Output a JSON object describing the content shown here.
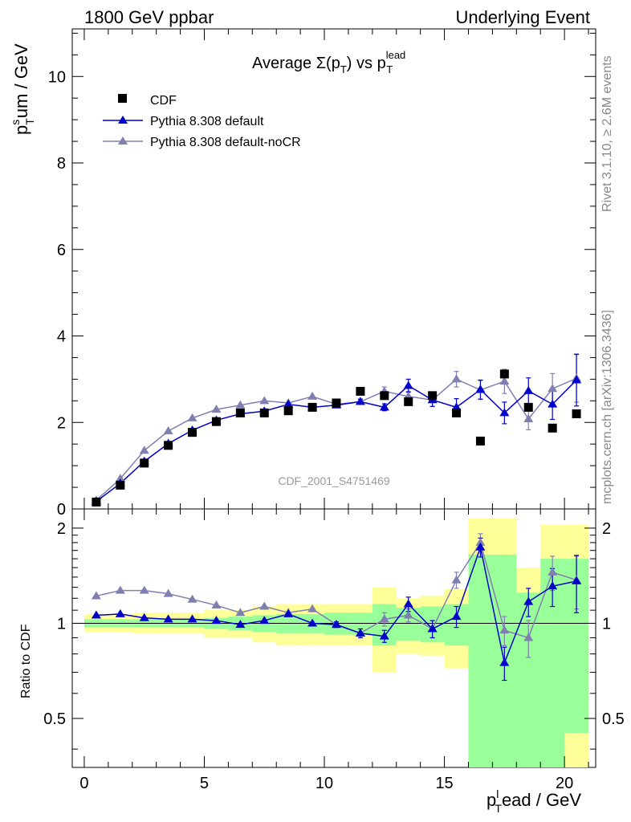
{
  "header": {
    "left_title": "1800 GeV ppbar",
    "right_title": "Underlying Event"
  },
  "side_labels": {
    "rivet": "Rivet 3.1.10, ≥ 2.6M events",
    "mcplots": "mcplots.cern.ch [arXiv:1306.3436]"
  },
  "chart_data": [
    {
      "type": "scatter",
      "title": "Average Σ(p_T) vs p_T^lead",
      "title_parts": {
        "main": "Average Σ(p",
        "sub1": "T",
        "mid": ") vs p",
        "sup": "lead",
        "sub2": "T"
      },
      "watermark": "CDF_2001_S4751469",
      "ylabel": "p_T^sum / GeV",
      "ylabel_parts": {
        "p": "p",
        "sup": "s",
        "sub": "T",
        "rest": "um / GeV"
      },
      "xlim": [
        -0.5,
        21.3
      ],
      "ylim": [
        0,
        11.1
      ],
      "yticks": [
        0,
        2,
        4,
        6,
        8,
        10
      ],
      "ytick_labels": [
        "0",
        "2",
        "4",
        "6",
        "8",
        "10"
      ],
      "legend_position": "top-left",
      "series": [
        {
          "name": "CDF",
          "color": "#000000",
          "marker": "square",
          "x": [
            0.5,
            1.5,
            2.5,
            3.5,
            4.5,
            5.5,
            6.5,
            7.5,
            8.5,
            9.5,
            10.5,
            11.5,
            12.5,
            13.5,
            14.5,
            15.5,
            16.5,
            17.5,
            18.5,
            19.5,
            20.5
          ],
          "y": [
            0.16,
            0.55,
            1.06,
            1.47,
            1.77,
            2.02,
            2.22,
            2.22,
            2.27,
            2.35,
            2.45,
            2.72,
            2.62,
            2.48,
            2.62,
            2.22,
            1.57,
            3.12,
            2.35,
            1.87,
            2.2
          ]
        },
        {
          "name": "Pythia 8.308 default",
          "color": "#0000cc",
          "marker": "triangle",
          "x": [
            0.5,
            1.5,
            2.5,
            3.5,
            4.5,
            5.5,
            6.5,
            7.5,
            8.5,
            9.5,
            10.5,
            11.5,
            12.5,
            13.5,
            14.5,
            15.5,
            16.5,
            17.5,
            18.5,
            19.5,
            20.5
          ],
          "y": [
            0.17,
            0.59,
            1.1,
            1.51,
            1.82,
            2.05,
            2.2,
            2.26,
            2.42,
            2.35,
            2.4,
            2.48,
            2.35,
            2.85,
            2.52,
            2.35,
            2.76,
            2.22,
            2.73,
            2.42,
            2.98
          ],
          "yerr": [
            0,
            0,
            0,
            0,
            0,
            0,
            0,
            0,
            0,
            0,
            0.05,
            0.06,
            0.08,
            0.15,
            0.15,
            0.2,
            0.22,
            0.25,
            0.3,
            0.35,
            0.6
          ]
        },
        {
          "name": "Pythia 8.308 default-noCR",
          "color": "#8080b0",
          "marker": "triangle",
          "x": [
            0.5,
            1.5,
            2.5,
            3.5,
            4.5,
            5.5,
            6.5,
            7.5,
            8.5,
            9.5,
            10.5,
            11.5,
            12.5,
            13.5,
            14.5,
            15.5,
            16.5,
            17.5,
            18.5,
            19.5,
            20.5
          ],
          "y": [
            0.2,
            0.7,
            1.35,
            1.8,
            2.1,
            2.3,
            2.4,
            2.5,
            2.45,
            2.6,
            2.42,
            2.48,
            2.72,
            2.6,
            2.52,
            3.0,
            2.75,
            2.95,
            2.08,
            2.78,
            3.02
          ],
          "yerr": [
            0,
            0,
            0,
            0,
            0,
            0,
            0,
            0,
            0,
            0,
            0.05,
            0.06,
            0.1,
            0.12,
            0.15,
            0.18,
            0.22,
            0.28,
            0.25,
            0.35,
            0.55
          ]
        }
      ]
    },
    {
      "type": "line",
      "ylabel": "Ratio to CDF",
      "xlabel": "p_T^lead / GeV",
      "xlabel_parts": {
        "p": "p",
        "sup": "l",
        "sub": "T",
        "rest": "ead / GeV"
      },
      "xlim": [
        -0.5,
        21.3
      ],
      "ylim": [
        0.35,
        2.3
      ],
      "xticks": [
        0,
        5,
        10,
        15,
        20
      ],
      "xtick_labels": [
        "0",
        "5",
        "10",
        "15",
        "20"
      ],
      "yticks": [
        0.5,
        1,
        2
      ],
      "ytick_labels": [
        "0.5",
        "1",
        "2"
      ],
      "bands": {
        "x_edges": [
          0,
          1,
          2,
          3,
          4,
          5,
          6,
          7,
          8,
          9,
          10,
          11,
          12,
          13,
          14,
          15,
          16,
          17,
          18,
          19,
          20,
          21
        ],
        "yellow_lo": [
          0.94,
          0.94,
          0.93,
          0.93,
          0.93,
          0.9,
          0.9,
          0.87,
          0.85,
          0.85,
          0.85,
          0.85,
          0.7,
          0.8,
          0.79,
          0.72,
          0.5,
          0.35,
          0.35,
          0.35,
          0.35
        ],
        "yellow_hi": [
          1.07,
          1.07,
          1.08,
          1.08,
          1.08,
          1.1,
          1.1,
          1.13,
          1.15,
          1.15,
          1.15,
          1.15,
          1.3,
          1.2,
          1.22,
          1.28,
          2.15,
          2.15,
          1.5,
          2.05,
          2.05
        ],
        "green_lo": [
          0.97,
          0.97,
          0.97,
          0.97,
          0.97,
          0.96,
          0.95,
          0.94,
          0.93,
          0.93,
          0.92,
          0.92,
          0.85,
          0.88,
          0.87,
          0.85,
          0.35,
          0.35,
          0.35,
          0.35,
          0.45
        ],
        "green_hi": [
          1.03,
          1.03,
          1.03,
          1.03,
          1.03,
          1.04,
          1.05,
          1.06,
          1.07,
          1.07,
          1.08,
          1.08,
          1.15,
          1.12,
          1.13,
          1.15,
          1.65,
          1.65,
          1.25,
          1.6,
          1.6
        ]
      },
      "series": [
        {
          "name": "Pythia 8.308 default",
          "color": "#0000cc",
          "x": [
            0.5,
            1.5,
            2.5,
            3.5,
            4.5,
            5.5,
            6.5,
            7.5,
            8.5,
            9.5,
            10.5,
            11.5,
            12.5,
            13.5,
            14.5,
            15.5,
            16.5,
            17.5,
            18.5,
            19.5,
            20.5
          ],
          "y": [
            1.06,
            1.07,
            1.04,
            1.03,
            1.03,
            1.02,
            0.99,
            1.02,
            1.07,
            1.0,
            0.99,
            0.93,
            0.91,
            1.15,
            0.96,
            1.05,
            1.74,
            0.75,
            1.17,
            1.31,
            1.36
          ],
          "yerr": [
            0,
            0,
            0,
            0,
            0,
            0,
            0,
            0,
            0,
            0,
            0.02,
            0.03,
            0.04,
            0.06,
            0.06,
            0.08,
            0.12,
            0.09,
            0.12,
            0.18,
            0.28
          ]
        },
        {
          "name": "Pythia 8.308 default-noCR",
          "color": "#8080b0",
          "x": [
            0.5,
            1.5,
            2.5,
            3.5,
            4.5,
            5.5,
            6.5,
            7.5,
            8.5,
            9.5,
            10.5,
            11.5,
            12.5,
            13.5,
            14.5,
            15.5,
            16.5,
            17.5,
            18.5,
            19.5,
            20.5
          ],
          "y": [
            1.22,
            1.27,
            1.27,
            1.24,
            1.19,
            1.14,
            1.08,
            1.13,
            1.08,
            1.11,
            0.99,
            0.93,
            1.03,
            1.06,
            0.96,
            1.37,
            1.8,
            0.95,
            0.9,
            1.45,
            1.37
          ],
          "yerr": [
            0,
            0,
            0,
            0,
            0,
            0,
            0,
            0,
            0,
            0,
            0.02,
            0.03,
            0.05,
            0.05,
            0.06,
            0.08,
            0.12,
            0.1,
            0.12,
            0.18,
            0.26
          ]
        }
      ]
    }
  ]
}
